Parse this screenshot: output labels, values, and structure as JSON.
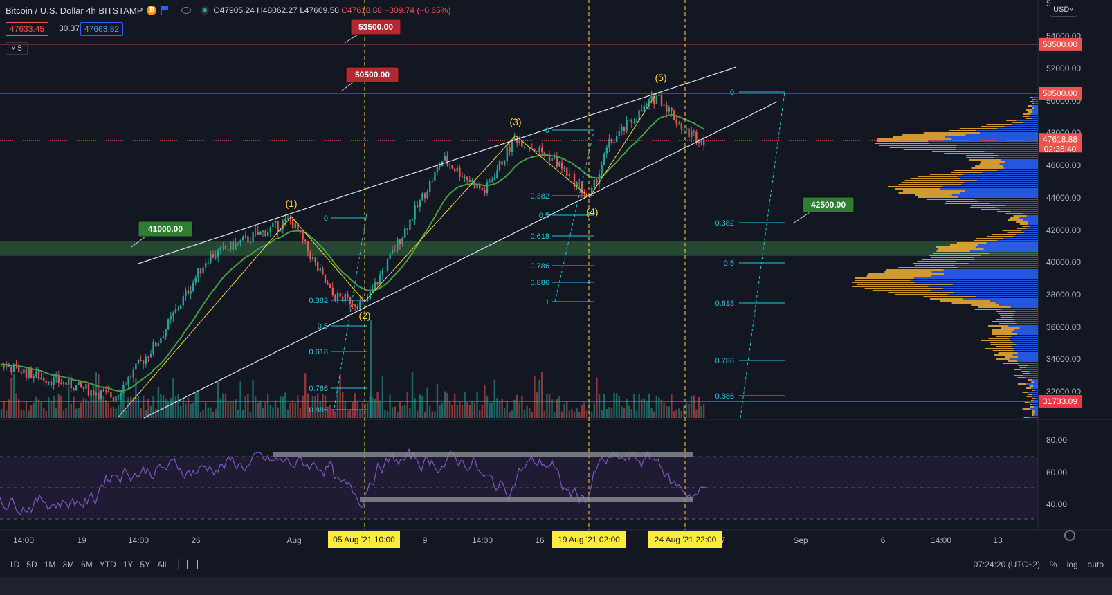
{
  "header": {
    "title": "Bitcoin / U.S. Dollar  4h  BITSTAMP",
    "open": "O47905.24",
    "high": "H48062.27",
    "low": "L47609.50",
    "close": "C47618.88",
    "change": "−309.74 (−0.65%)",
    "bid": "47633.45",
    "spread": "30.37",
    "ask": "47663.82",
    "indicators_toggle": "5",
    "currency": "USD",
    "icons": [
      "bitcoin-icon",
      "flag-icon",
      "eye-icon",
      "live-dot-icon",
      "settings-icon",
      "calendar-icon"
    ]
  },
  "colors": {
    "background": "#131722",
    "up": "#26a69a",
    "down": "#ef5350",
    "ema": "#43a047",
    "rsi": "#7e57c2",
    "fib": "#26c6da",
    "wave": "#fdd835",
    "vp_up": "#2962ff",
    "vp_down": "#f2b233"
  },
  "axis": {
    "price_ticks": [
      "54000.00",
      "52000.00",
      "50000.00",
      "48000.00",
      "46000.00",
      "44000.00",
      "42000.00",
      "40000.00",
      "38000.00",
      "36000.00",
      "34000.00",
      "32000.00"
    ],
    "rsi_ticks": [
      "80.00",
      "60.00",
      "40.00"
    ],
    "x_ticks": [
      "14:00",
      "19",
      "14:00",
      "26",
      "Aug",
      "9",
      "14:00",
      "16",
      "Sep",
      "6",
      "14:00",
      "13"
    ],
    "x_tick_partial": "7",
    "top_cut_tick": "5"
  },
  "price_tags": {
    "r1": "53500.00",
    "r2": "50500.00",
    "current": "47618.88",
    "countdown": "02:35:40",
    "support": "31733.09"
  },
  "callouts": {
    "c53500": "53500.00",
    "c50500": "50500.00",
    "c41000": "41000.00",
    "c42500": "42500.00"
  },
  "waves": [
    "(1)",
    "(2)",
    "(3)",
    "(4)",
    "(5)"
  ],
  "fib_sets": [
    {
      "labels": [
        "0",
        "0.382",
        "0.5",
        "0.618",
        "0.786",
        "0.886"
      ]
    },
    {
      "labels": [
        "0",
        "0.382",
        "0.5",
        "0.618",
        "0.786",
        "0.886",
        "1"
      ]
    },
    {
      "labels": [
        "0",
        "0.382",
        "0.5",
        "0.618",
        "0.786",
        "0.886"
      ]
    }
  ],
  "date_markers": [
    "05 Aug '21   10:00",
    "19 Aug '21   02:00",
    "24 Aug '21   22:00"
  ],
  "bottom_bar": {
    "ranges": [
      "1D",
      "5D",
      "1M",
      "3M",
      "6M",
      "YTD",
      "1Y",
      "5Y",
      "All"
    ],
    "clock": "07:24:20 (UTC+2)",
    "percent": "%",
    "log": "log",
    "auto": "auto"
  },
  "chart_data": {
    "type": "candlestick",
    "symbol": "BTCUSD",
    "timeframe": "4h",
    "ylim": [
      30000,
      55000
    ],
    "wave_points": [
      {
        "label": "(1)",
        "price": 42800
      },
      {
        "label": "(2)",
        "price": 37600
      },
      {
        "label": "(3)",
        "price": 47800
      },
      {
        "label": "(4)",
        "price": 44100
      },
      {
        "label": "(5)",
        "price": 50500
      }
    ],
    "horizontal_levels": [
      53500,
      50500,
      31733.09
    ],
    "zone": [
      40600,
      41500
    ],
    "current_price": 47618.88,
    "rsi": {
      "ylim": [
        20,
        95
      ],
      "bands": [
        30,
        50,
        70
      ]
    }
  }
}
